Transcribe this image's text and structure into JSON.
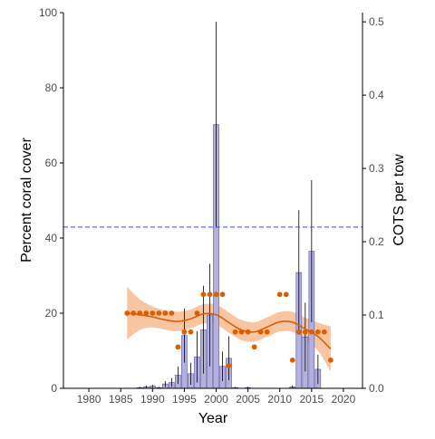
{
  "chart_data": {
    "type": "bar",
    "xlabel": "Year",
    "ylabel_left": "Percent coral cover",
    "ylabel_right": "COTS per tow",
    "xlim": [
      1976,
      2023
    ],
    "ylim_left": [
      0,
      100
    ],
    "ylim_right": [
      0,
      0.5125
    ],
    "x_ticks": [
      1980,
      1985,
      1990,
      1995,
      2000,
      2005,
      2010,
      2015,
      2020
    ],
    "y_ticks_left": [
      0,
      20,
      40,
      60,
      80,
      100
    ],
    "y_ticks_right": [
      0.0,
      0.1,
      0.2,
      0.3,
      0.4,
      0.5
    ],
    "grid": false,
    "threshold_line": {
      "value": 0.22,
      "axis": "right",
      "style": "dashed"
    },
    "series": [
      {
        "kind": "bar",
        "axis": "right",
        "points": [
          {
            "x": 1988,
            "y": 0.001,
            "err": 0.001
          },
          {
            "x": 1989,
            "y": 0.002,
            "err": 0.002
          },
          {
            "x": 1990,
            "y": 0.003,
            "err": 0.002
          },
          {
            "x": 1991,
            "y": 0.001,
            "err": 0.001
          },
          {
            "x": 1992,
            "y": 0.006,
            "err": 0.004
          },
          {
            "x": 1993,
            "y": 0.008,
            "err": 0.006
          },
          {
            "x": 1994,
            "y": 0.018,
            "err": 0.012
          },
          {
            "x": 1995,
            "y": 0.072,
            "err": 0.037
          },
          {
            "x": 1996,
            "y": 0.02,
            "err": 0.015
          },
          {
            "x": 1997,
            "y": 0.043,
            "err": 0.035
          },
          {
            "x": 1998,
            "y": 0.08,
            "err": 0.06
          },
          {
            "x": 1999,
            "y": 0.1,
            "err": 0.07
          },
          {
            "x": 2000,
            "y": 0.36,
            "err": 0.14
          },
          {
            "x": 2001,
            "y": 0.03,
            "err": 0.02
          },
          {
            "x": 2002,
            "y": 0.041,
            "err": 0.03
          },
          {
            "x": 2003,
            "y": 0.001,
            "err": 0.001
          },
          {
            "x": 2005,
            "y": 0.001,
            "err": 0.001
          },
          {
            "x": 2012,
            "y": 0.002,
            "err": 0.002
          },
          {
            "x": 2013,
            "y": 0.158,
            "err": 0.085
          },
          {
            "x": 2014,
            "y": 0.07,
            "err": 0.047
          },
          {
            "x": 2015,
            "y": 0.187,
            "err": 0.097
          },
          {
            "x": 2016,
            "y": 0.026,
            "err": 0.02
          }
        ]
      },
      {
        "kind": "scatter",
        "axis": "left",
        "points": [
          {
            "x": 1986,
            "y": 20
          },
          {
            "x": 1987,
            "y": 20
          },
          {
            "x": 1988,
            "y": 20
          },
          {
            "x": 1989,
            "y": 20
          },
          {
            "x": 1990,
            "y": 20
          },
          {
            "x": 1991,
            "y": 20
          },
          {
            "x": 1992,
            "y": 20
          },
          {
            "x": 1993,
            "y": 20
          },
          {
            "x": 1994,
            "y": 11
          },
          {
            "x": 1995,
            "y": 15
          },
          {
            "x": 1996,
            "y": 15
          },
          {
            "x": 1997,
            "y": 20
          },
          {
            "x": 1998,
            "y": 25
          },
          {
            "x": 1999,
            "y": 25
          },
          {
            "x": 2000,
            "y": 25
          },
          {
            "x": 2001,
            "y": 25
          },
          {
            "x": 2002,
            "y": 6
          },
          {
            "x": 2003,
            "y": 15
          },
          {
            "x": 2004,
            "y": 15
          },
          {
            "x": 2005,
            "y": 15
          },
          {
            "x": 2006,
            "y": 11
          },
          {
            "x": 2007,
            "y": 15
          },
          {
            "x": 2008,
            "y": 15
          },
          {
            "x": 2010,
            "y": 25
          },
          {
            "x": 2011,
            "y": 25
          },
          {
            "x": 2012,
            "y": 7.5
          },
          {
            "x": 2013,
            "y": 15
          },
          {
            "x": 2014,
            "y": 15
          },
          {
            "x": 2015,
            "y": 15
          },
          {
            "x": 2016,
            "y": 15
          },
          {
            "x": 2017,
            "y": 15
          },
          {
            "x": 2018,
            "y": 7.5
          }
        ]
      },
      {
        "kind": "line",
        "axis": "left",
        "smooth": true,
        "band": true,
        "points": [
          {
            "x": 1986,
            "y": 20.0,
            "lo": 13.0,
            "hi": 27.0
          },
          {
            "x": 1988,
            "y": 19.6,
            "lo": 15.5,
            "hi": 23.7
          },
          {
            "x": 1990,
            "y": 19.0,
            "lo": 16.2,
            "hi": 21.8
          },
          {
            "x": 1992,
            "y": 18.2,
            "lo": 15.6,
            "hi": 20.8
          },
          {
            "x": 1994,
            "y": 17.8,
            "lo": 15.2,
            "hi": 20.4
          },
          {
            "x": 1996,
            "y": 18.5,
            "lo": 16.0,
            "hi": 21.0
          },
          {
            "x": 1998,
            "y": 19.8,
            "lo": 17.2,
            "hi": 22.4
          },
          {
            "x": 2000,
            "y": 19.6,
            "lo": 17.0,
            "hi": 22.3
          },
          {
            "x": 2002,
            "y": 17.5,
            "lo": 14.8,
            "hi": 20.2
          },
          {
            "x": 2004,
            "y": 15.5,
            "lo": 12.8,
            "hi": 18.2
          },
          {
            "x": 2006,
            "y": 15.0,
            "lo": 12.4,
            "hi": 17.6
          },
          {
            "x": 2008,
            "y": 16.3,
            "lo": 13.7,
            "hi": 18.9
          },
          {
            "x": 2010,
            "y": 17.7,
            "lo": 15.1,
            "hi": 20.3
          },
          {
            "x": 2012,
            "y": 17.6,
            "lo": 15.0,
            "hi": 20.4
          },
          {
            "x": 2014,
            "y": 15.8,
            "lo": 12.8,
            "hi": 18.8
          },
          {
            "x": 2016,
            "y": 13.8,
            "lo": 10.0,
            "hi": 17.5
          },
          {
            "x": 2018,
            "y": 10.5,
            "lo": 4.5,
            "hi": 16.5
          }
        ]
      }
    ]
  },
  "style": {
    "bar_fill": "#b3b0dd",
    "bar_stroke": "#5c5a9c",
    "error_bar": "#000000",
    "point_color": "#d95f02",
    "line_color": "#d95f02",
    "band_color": "#f4b183",
    "threshold_color": "#4a48e8",
    "axis_color": "#000000",
    "tick_text_color": "#4d4d4d"
  }
}
